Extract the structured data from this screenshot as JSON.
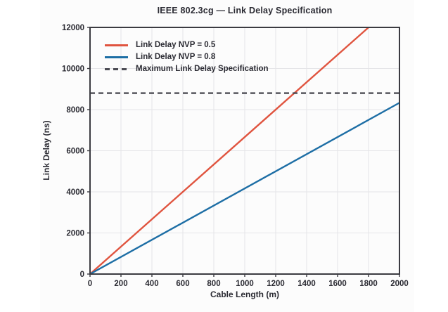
{
  "colors": {
    "text": "#2b2b33",
    "grid": "#e5e5e8",
    "spine": "#3b3b41",
    "figure_bg": "#fcfcfc",
    "red_series": "#e0543f",
    "blue_series": "#1d6ea5",
    "dashed_series": "#4b4b53"
  },
  "chart_data": {
    "type": "line",
    "title": "IEEE 802.3cg — Link Delay Specification",
    "xlabel": "Cable Length (m)",
    "ylabel": "Link Delay (ns)",
    "xlim": [
      0,
      2000
    ],
    "ylim": [
      0,
      12000
    ],
    "xticks": [
      0,
      200,
      400,
      600,
      800,
      1000,
      1200,
      1400,
      1600,
      1800,
      2000
    ],
    "yticks": [
      0,
      2000,
      4000,
      6000,
      8000,
      10000,
      12000
    ],
    "grid": true,
    "legend_position": "upper-left",
    "series": [
      {
        "name": "Link Delay NVP = 0.5",
        "color": "#e0543f",
        "style": "solid",
        "x": [
          0,
          1800
        ],
        "y": [
          0,
          12000
        ]
      },
      {
        "name": "Link Delay NVP = 0.8",
        "color": "#1d6ea5",
        "style": "solid",
        "x": [
          0,
          2000
        ],
        "y": [
          0,
          8333
        ]
      },
      {
        "name": "Maximum Link Delay Specification",
        "color": "#4b4b53",
        "style": "dashed",
        "x": [
          0,
          2000
        ],
        "y": [
          8800,
          8800
        ]
      }
    ]
  }
}
